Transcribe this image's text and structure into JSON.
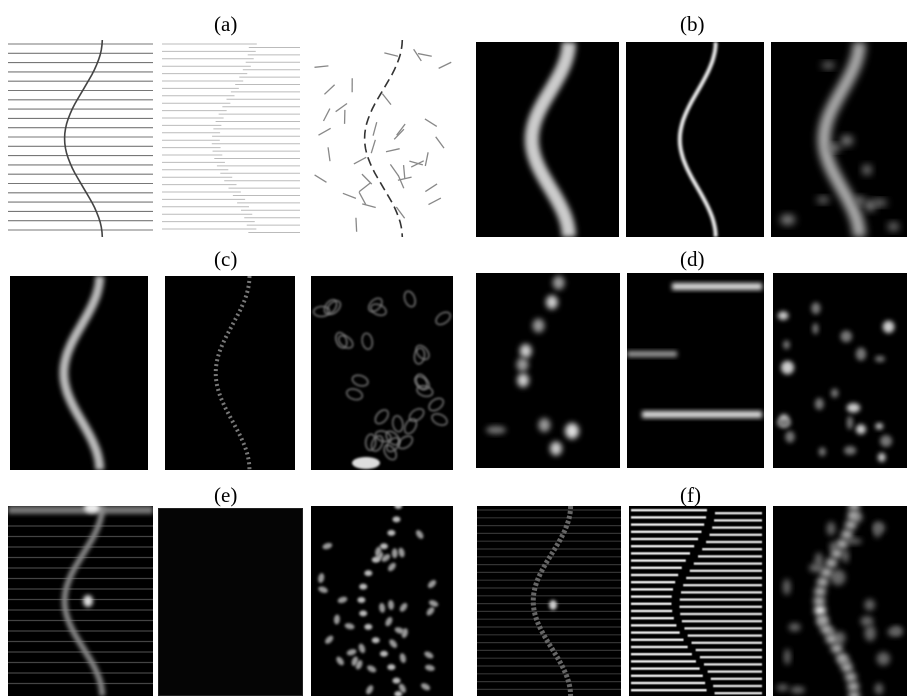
{
  "figure": {
    "labels": [
      "(a)",
      "(b)",
      "(c)",
      "(d)",
      "(e)",
      "(f)"
    ]
  },
  "colors": {
    "background": "#ffffff",
    "dark_panel": "#000000",
    "curve_dark": "#555555",
    "bar_light": "#bbbbbb",
    "glow": "#d8d8d8"
  }
}
